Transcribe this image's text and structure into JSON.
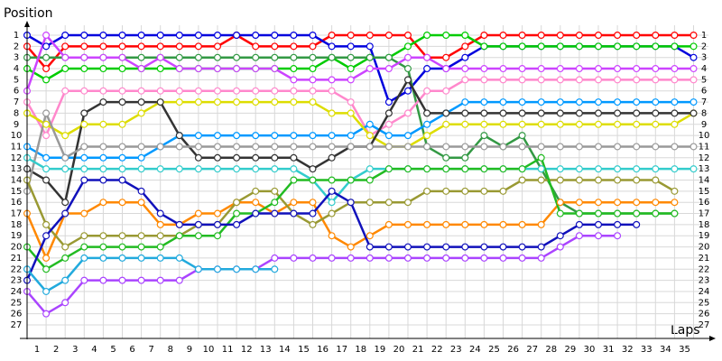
{
  "chart_data": {
    "type": "line",
    "title": "Position",
    "x_label": "Laps",
    "x": [
      0,
      1,
      2,
      3,
      4,
      5,
      6,
      7,
      8,
      9,
      10,
      11,
      12,
      13,
      14,
      15,
      16,
      17,
      18,
      19,
      20,
      21,
      22,
      23,
      24,
      25,
      26,
      27,
      28,
      29,
      30,
      31,
      32,
      33,
      34,
      35
    ],
    "xlim": [
      0,
      35
    ],
    "ylim": [
      1,
      27
    ],
    "y_reversed": true,
    "grid": true,
    "xticks": [
      1,
      2,
      3,
      4,
      5,
      6,
      7,
      8,
      9,
      10,
      11,
      12,
      13,
      14,
      15,
      16,
      17,
      18,
      19,
      20,
      21,
      22,
      23,
      24,
      25,
      26,
      27,
      28,
      29,
      30,
      31,
      32,
      33,
      34,
      35
    ],
    "yticks": [
      1,
      2,
      3,
      4,
      5,
      6,
      7,
      8,
      9,
      10,
      11,
      12,
      13,
      14,
      15,
      16,
      17,
      18,
      19,
      20,
      21,
      22,
      23,
      24,
      25,
      26,
      27
    ],
    "series": [
      {
        "color": "#ff0000",
        "values": [
          2,
          4,
          2,
          2,
          2,
          2,
          2,
          2,
          2,
          2,
          2,
          1,
          2,
          2,
          2,
          2,
          1,
          1,
          1,
          1,
          1,
          3,
          3,
          2,
          1,
          1,
          1,
          1,
          1,
          1,
          1,
          1,
          1,
          1,
          1,
          1
        ]
      },
      {
        "color": "#0000dd",
        "values": [
          1,
          2,
          1,
          1,
          1,
          1,
          1,
          1,
          1,
          1,
          1,
          1,
          1,
          1,
          1,
          1,
          2,
          2,
          2,
          7,
          6,
          4,
          4,
          3,
          2,
          2,
          2,
          2,
          2,
          2,
          2,
          2,
          2,
          2,
          2,
          3
        ]
      },
      {
        "color": "#00cc00",
        "values": [
          4,
          5,
          4,
          4,
          4,
          4,
          4,
          4,
          4,
          4,
          4,
          4,
          4,
          4,
          4,
          4,
          3,
          4,
          3,
          3,
          2,
          1,
          1,
          1,
          2,
          2,
          2,
          2,
          2,
          2,
          2,
          2,
          2,
          2,
          2,
          2
        ]
      },
      {
        "color": "#339944",
        "values": [
          3,
          3,
          3,
          3,
          3,
          3,
          3,
          3,
          3,
          3,
          3,
          3,
          3,
          3,
          3,
          3,
          3,
          3,
          3,
          3,
          4,
          11,
          12,
          12,
          10,
          11,
          10,
          13,
          16,
          17,
          17,
          17,
          17,
          17,
          17,
          null
        ]
      },
      {
        "color": "#cc44ff",
        "values": [
          6,
          1,
          3,
          3,
          3,
          3,
          4,
          3,
          4,
          4,
          4,
          4,
          4,
          4,
          5,
          5,
          5,
          5,
          4,
          4,
          3,
          3,
          4,
          4,
          4,
          4,
          4,
          4,
          4,
          4,
          4,
          4,
          4,
          4,
          4,
          4
        ]
      },
      {
        "color": "#ff88cc",
        "values": [
          7,
          10,
          6,
          6,
          6,
          6,
          6,
          6,
          6,
          6,
          6,
          6,
          6,
          6,
          6,
          6,
          6,
          7,
          10,
          9,
          8,
          6,
          6,
          5,
          5,
          5,
          5,
          5,
          5,
          5,
          5,
          5,
          5,
          5,
          5,
          5
        ]
      },
      {
        "color": "#0099ff",
        "values": [
          11,
          12,
          12,
          12,
          12,
          12,
          12,
          11,
          10,
          10,
          10,
          10,
          10,
          10,
          10,
          10,
          10,
          10,
          9,
          10,
          10,
          9,
          8,
          7,
          7,
          7,
          7,
          7,
          7,
          7,
          7,
          7,
          7,
          7,
          7,
          7
        ]
      },
      {
        "color": "#dddd00",
        "values": [
          8,
          9,
          10,
          9,
          9,
          9,
          8,
          7,
          7,
          7,
          7,
          7,
          7,
          7,
          7,
          7,
          8,
          8,
          10,
          11,
          11,
          10,
          9,
          9,
          9,
          9,
          9,
          9,
          9,
          9,
          9,
          9,
          9,
          9,
          9,
          8
        ]
      },
      {
        "color": "#333333",
        "values": [
          13,
          14,
          16,
          8,
          7,
          7,
          7,
          7,
          10,
          12,
          12,
          12,
          12,
          12,
          12,
          13,
          12,
          11,
          11,
          8,
          5,
          8,
          8,
          8,
          8,
          8,
          8,
          8,
          8,
          8,
          8,
          8,
          8,
          8,
          8,
          8
        ]
      },
      {
        "color": "#999999",
        "values": [
          15,
          8,
          12,
          11,
          11,
          11,
          11,
          11,
          11,
          11,
          11,
          11,
          11,
          11,
          11,
          11,
          11,
          11,
          11,
          11,
          11,
          11,
          11,
          11,
          11,
          11,
          11,
          11,
          11,
          11,
          11,
          11,
          11,
          11,
          11,
          11
        ]
      },
      {
        "color": "#33cccc",
        "values": [
          12,
          13,
          13,
          13,
          13,
          13,
          13,
          13,
          13,
          13,
          13,
          13,
          13,
          13,
          13,
          14,
          16,
          14,
          13,
          13,
          13,
          13,
          13,
          13,
          13,
          13,
          13,
          13,
          13,
          13,
          13,
          13,
          13,
          13,
          13,
          13
        ]
      },
      {
        "color": "#ff8800",
        "values": [
          17,
          21,
          17,
          17,
          16,
          16,
          16,
          18,
          18,
          17,
          17,
          16,
          16,
          17,
          16,
          16,
          19,
          20,
          19,
          18,
          18,
          18,
          18,
          18,
          18,
          18,
          18,
          18,
          16,
          16,
          16,
          16,
          16,
          16,
          16,
          null
        ]
      },
      {
        "color": "#aa44ff",
        "values": [
          24,
          26,
          25,
          23,
          23,
          23,
          23,
          23,
          23,
          22,
          22,
          22,
          22,
          21,
          21,
          21,
          21,
          21,
          21,
          21,
          21,
          21,
          21,
          21,
          21,
          21,
          21,
          21,
          20,
          19,
          19,
          19,
          null,
          null,
          null,
          null
        ]
      },
      {
        "color": "#999933",
        "values": [
          14,
          18,
          20,
          19,
          19,
          19,
          19,
          19,
          19,
          18,
          18,
          16,
          15,
          15,
          17,
          18,
          17,
          16,
          16,
          16,
          16,
          15,
          15,
          15,
          15,
          15,
          14,
          14,
          14,
          14,
          14,
          14,
          14,
          14,
          15,
          null
        ]
      },
      {
        "color": "#22bb22",
        "values": [
          20,
          22,
          21,
          20,
          20,
          20,
          20,
          20,
          19,
          19,
          19,
          17,
          17,
          16,
          14,
          14,
          14,
          14,
          14,
          13,
          13,
          13,
          13,
          13,
          13,
          13,
          13,
          12,
          17,
          17,
          17,
          17,
          17,
          17,
          17,
          null
        ]
      },
      {
        "color": "#1111bb",
        "values": [
          23,
          19,
          17,
          14,
          14,
          14,
          15,
          17,
          18,
          18,
          18,
          18,
          17,
          17,
          17,
          17,
          15,
          16,
          20,
          20,
          20,
          20,
          20,
          20,
          20,
          20,
          20,
          20,
          19,
          18,
          18,
          18,
          18,
          null,
          null,
          null
        ]
      },
      {
        "color": "#22aadd",
        "values": [
          22,
          24,
          23,
          21,
          21,
          21,
          21,
          21,
          21,
          22,
          22,
          22,
          22,
          22,
          null,
          null,
          null,
          null,
          null,
          null,
          null,
          null,
          null,
          null,
          null,
          null,
          null,
          null,
          null,
          null,
          null,
          null,
          null,
          null,
          null,
          null
        ]
      }
    ]
  }
}
